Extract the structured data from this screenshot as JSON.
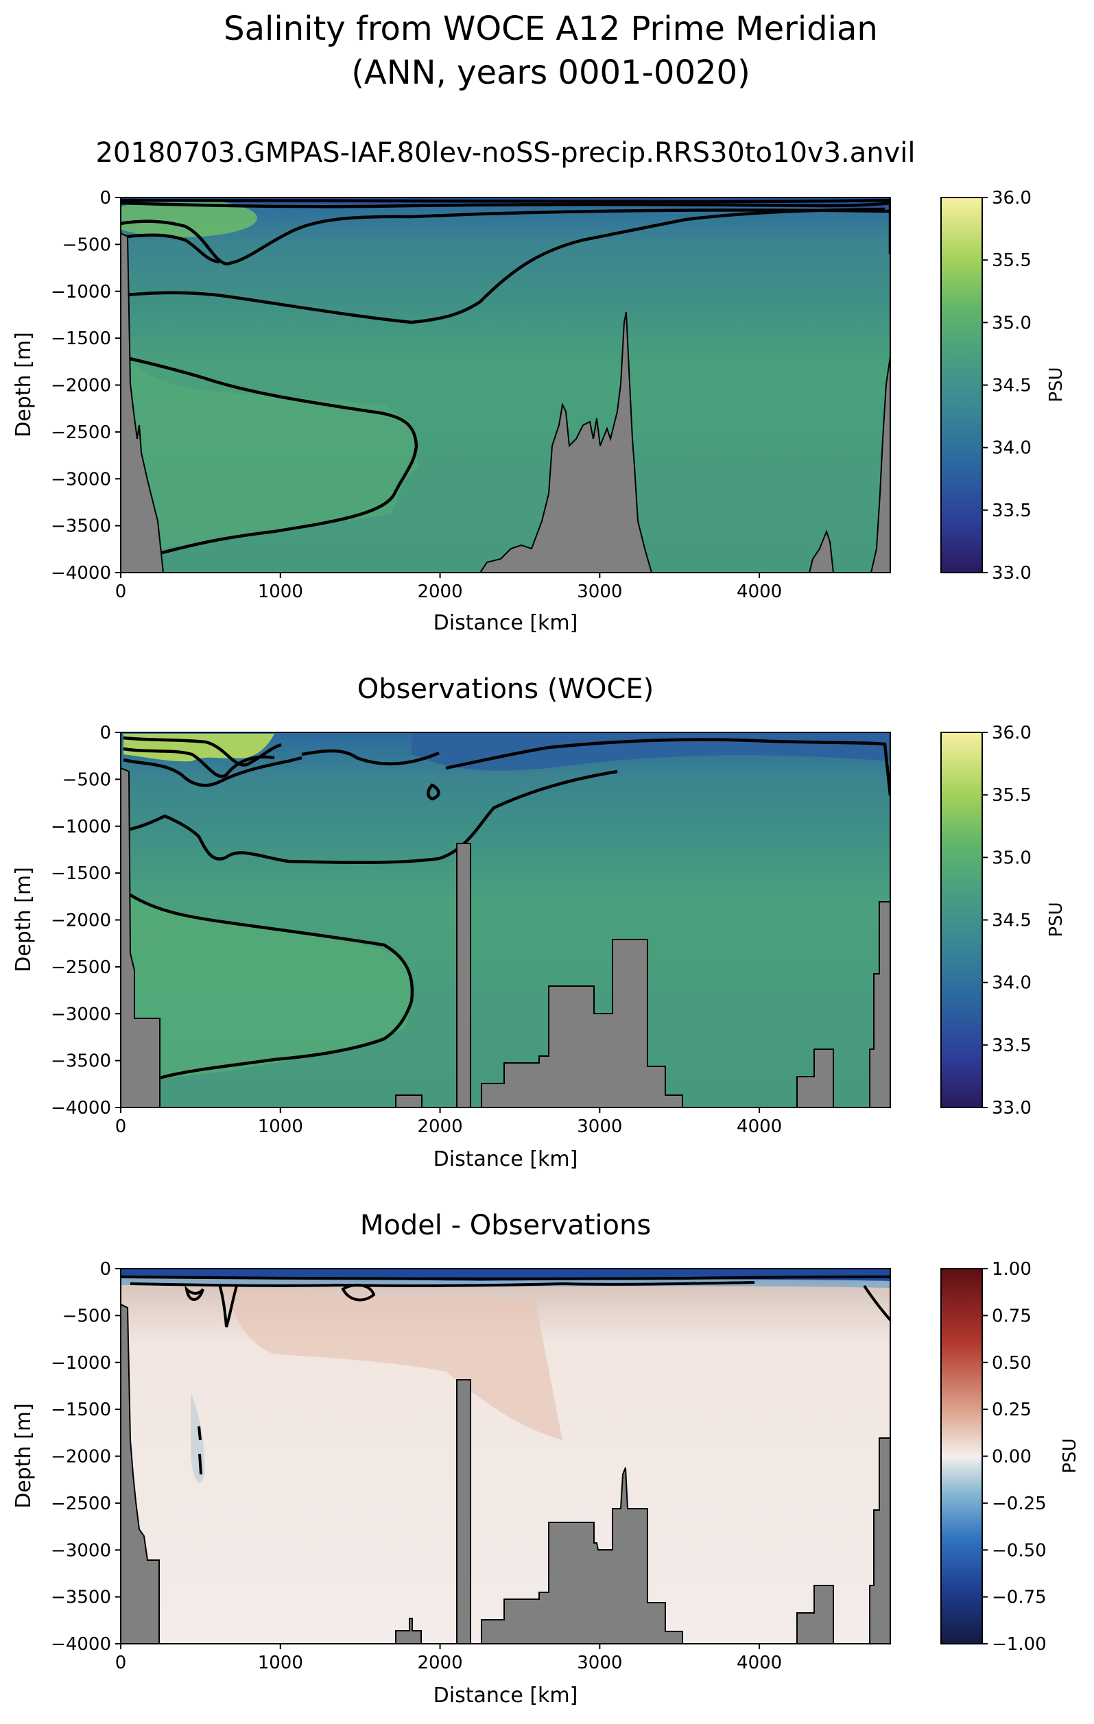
{
  "figure": {
    "title_line1": "Salinity from WOCE A12 Prime Meridian",
    "title_line2": "(ANN, years 0001-0020)"
  },
  "chart_data": [
    {
      "type": "heatmap",
      "title": "20180703.GMPAS-IAF.80lev-noSS-precip.RRS30to10v3.anvil",
      "xlabel": "Distance [km]",
      "ylabel": "Depth [m]",
      "xlim": [
        0,
        4820
      ],
      "ylim": [
        -4000,
        0
      ],
      "xticks": [
        "0",
        "1000",
        "2000",
        "3000",
        "4000"
      ],
      "yticks": [
        "0",
        "−500",
        "−1000",
        "−1500",
        "−2000",
        "−2500",
        "−3000",
        "−3500",
        "−4000"
      ],
      "colorbar": {
        "label": "PSU",
        "range": [
          33.0,
          36.0
        ],
        "ticks": [
          "33.0",
          "33.5",
          "34.0",
          "34.5",
          "35.0",
          "35.5",
          "36.0"
        ],
        "colormap": [
          "#2a1a5e",
          "#2d3f9a",
          "#2b6aa0",
          "#3a8a94",
          "#48a080",
          "#5fb56a",
          "#a6d25a",
          "#f8f0a0"
        ]
      },
      "grid": false
    },
    {
      "type": "heatmap",
      "title": "Observations (WOCE)",
      "xlabel": "Distance [km]",
      "ylabel": "Depth [m]",
      "xlim": [
        0,
        4820
      ],
      "ylim": [
        -4000,
        0
      ],
      "xticks": [
        "0",
        "1000",
        "2000",
        "3000",
        "4000"
      ],
      "yticks": [
        "0",
        "−500",
        "−1000",
        "−1500",
        "−2000",
        "−2500",
        "−3000",
        "−3500",
        "−4000"
      ],
      "colorbar": {
        "label": "PSU",
        "range": [
          33.0,
          36.0
        ],
        "ticks": [
          "33.0",
          "33.5",
          "34.0",
          "34.5",
          "35.0",
          "35.5",
          "36.0"
        ],
        "colormap": [
          "#2a1a5e",
          "#2d3f9a",
          "#2b6aa0",
          "#3a8a94",
          "#48a080",
          "#5fb56a",
          "#a6d25a",
          "#f8f0a0"
        ]
      },
      "grid": false
    },
    {
      "type": "heatmap",
      "title": "Model - Observations",
      "xlabel": "Distance [km]",
      "ylabel": "Depth [m]",
      "xlim": [
        0,
        4820
      ],
      "ylim": [
        -4000,
        0
      ],
      "xticks": [
        "0",
        "1000",
        "2000",
        "3000",
        "4000"
      ],
      "yticks": [
        "0",
        "−500",
        "−1000",
        "−1500",
        "−2000",
        "−2500",
        "−3000",
        "−3500",
        "−4000"
      ],
      "colorbar": {
        "label": "PSU",
        "range": [
          -1.0,
          1.0
        ],
        "ticks": [
          "−1.00",
          "−0.75",
          "−0.50",
          "−0.25",
          "0.00",
          "0.25",
          "0.50",
          "0.75",
          "1.00"
        ],
        "colormap": [
          "#141a40",
          "#1f3c8f",
          "#2f74c0",
          "#86b6d2",
          "#f4efed",
          "#dca48c",
          "#b33a2e",
          "#5e0d14"
        ]
      },
      "grid": false
    }
  ]
}
